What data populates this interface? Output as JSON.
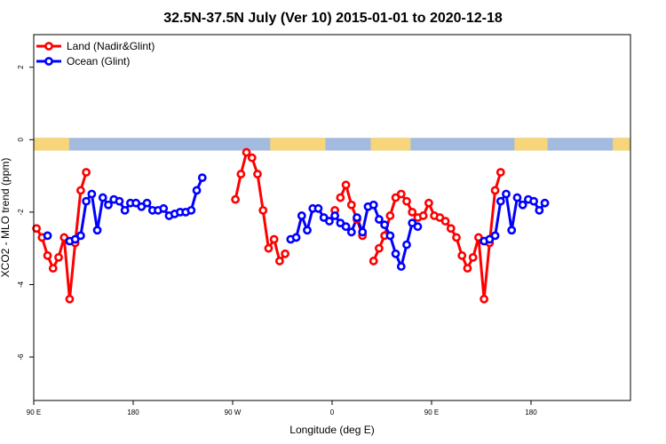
{
  "chart_data": {
    "type": "line",
    "title": "32.5N-37.5N July (Ver 10)   2015-01-01 to 2020-12-18",
    "xlabel": "Longitude (deg E)",
    "ylabel": "XCO2 - MLO trend (ppm)",
    "xlim": [
      90,
      630
    ],
    "ylim": [
      -7.2,
      2.9
    ],
    "x_ticks": [
      {
        "value": 90,
        "label": "90 E"
      },
      {
        "value": 180,
        "label": "180"
      },
      {
        "value": 270,
        "label": "90 W"
      },
      {
        "value": 360,
        "label": "0"
      },
      {
        "value": 450,
        "label": "90 E"
      },
      {
        "value": 540,
        "label": "180"
      }
    ],
    "y_ticks": [
      {
        "value": 2,
        "label": "2"
      },
      {
        "value": 0,
        "label": "0"
      },
      {
        "value": -2,
        "label": "-2"
      },
      {
        "value": -4,
        "label": "-4"
      },
      {
        "value": -6,
        "label": "-6"
      }
    ],
    "legend": {
      "position": "top-left"
    },
    "land_ocean_strip": {
      "y_range": [
        -0.3,
        0.05
      ],
      "ocean_color": "#a3bbdf",
      "land_color": "#f7d57a",
      "land_segments": [
        [
          90,
          122
        ],
        [
          304,
          354
        ],
        [
          395,
          431
        ],
        [
          525,
          555
        ],
        [
          614,
          630
        ]
      ]
    },
    "series": [
      {
        "name": "Land (Nadir&Glint)",
        "color": "#ff0000",
        "segments": [
          [
            [
              92.5,
              -2.45
            ],
            [
              97.5,
              -2.7
            ],
            [
              102.5,
              -3.2
            ],
            [
              107.5,
              -3.55
            ],
            [
              112.5,
              -3.25
            ],
            [
              117.5,
              -2.7
            ],
            [
              122.5,
              -4.4
            ],
            [
              127.5,
              -2.85
            ],
            [
              132.5,
              -1.4
            ],
            [
              137.5,
              -0.9
            ]
          ],
          [
            [
              272.5,
              -1.65
            ],
            [
              277.5,
              -0.95
            ],
            [
              282.5,
              -0.35
            ],
            [
              287.5,
              -0.5
            ],
            [
              292.5,
              -0.95
            ],
            [
              297.5,
              -1.95
            ],
            [
              302.5,
              -3.0
            ],
            [
              307.5,
              -2.75
            ],
            [
              312.5,
              -3.35
            ],
            [
              317.5,
              -3.15
            ]
          ],
          [
            [
              362.5,
              -1.95
            ]
          ],
          [
            [
              367.5,
              -1.6
            ],
            [
              372.5,
              -1.25
            ],
            [
              377.5,
              -1.8
            ],
            [
              382.5,
              -2.2
            ],
            [
              387.5,
              -2.65
            ]
          ],
          [
            [
              397.5,
              -3.35
            ],
            [
              402.5,
              -3.0
            ],
            [
              407.5,
              -2.65
            ],
            [
              412.5,
              -2.1
            ],
            [
              417.5,
              -1.6
            ],
            [
              422.5,
              -1.5
            ],
            [
              427.5,
              -1.7
            ],
            [
              432.5,
              -2.0
            ],
            [
              437.5,
              -2.15
            ],
            [
              442.5,
              -2.1
            ],
            [
              447.5,
              -1.75
            ],
            [
              452.5,
              -2.1
            ],
            [
              457.5,
              -2.15
            ],
            [
              462.5,
              -2.25
            ],
            [
              467.5,
              -2.45
            ],
            [
              472.5,
              -2.7
            ],
            [
              477.5,
              -3.2
            ],
            [
              482.5,
              -3.55
            ],
            [
              487.5,
              -3.25
            ],
            [
              492.5,
              -2.7
            ],
            [
              497.5,
              -4.4
            ],
            [
              502.5,
              -2.85
            ],
            [
              507.5,
              -1.4
            ],
            [
              512.5,
              -0.9
            ]
          ]
        ]
      },
      {
        "name": "Ocean (Glint)",
        "color": "#0000ff",
        "segments": [
          [
            [
              102.5,
              -2.65
            ]
          ],
          [
            [
              122.5,
              -2.8
            ],
            [
              127.5,
              -2.75
            ],
            [
              132.5,
              -2.65
            ],
            [
              137.5,
              -1.7
            ],
            [
              142.5,
              -1.5
            ],
            [
              147.5,
              -2.5
            ],
            [
              152.5,
              -1.6
            ],
            [
              157.5,
              -1.8
            ],
            [
              162.5,
              -1.65
            ],
            [
              167.5,
              -1.7
            ],
            [
              172.5,
              -1.95
            ],
            [
              177.5,
              -1.75
            ],
            [
              182.5,
              -1.75
            ],
            [
              187.5,
              -1.85
            ],
            [
              192.5,
              -1.75
            ],
            [
              197.5,
              -1.95
            ],
            [
              202.5,
              -1.95
            ],
            [
              207.5,
              -1.9
            ],
            [
              212.5,
              -2.1
            ],
            [
              217.5,
              -2.05
            ],
            [
              222.5,
              -2.0
            ],
            [
              227.5,
              -2.0
            ],
            [
              232.5,
              -1.95
            ],
            [
              237.5,
              -1.4
            ],
            [
              242.5,
              -1.05
            ]
          ],
          [
            [
              322.5,
              -2.75
            ],
            [
              327.5,
              -2.7
            ],
            [
              332.5,
              -2.1
            ],
            [
              337.5,
              -2.5
            ],
            [
              342.5,
              -1.9
            ],
            [
              347.5,
              -1.9
            ],
            [
              352.5,
              -2.15
            ],
            [
              357.5,
              -2.25
            ],
            [
              362.5,
              -2.1
            ],
            [
              367.5,
              -2.3
            ],
            [
              372.5,
              -2.4
            ],
            [
              377.5,
              -2.55
            ],
            [
              382.5,
              -2.15
            ],
            [
              387.5,
              -2.55
            ],
            [
              392.5,
              -1.85
            ],
            [
              397.5,
              -1.8
            ],
            [
              402.5,
              -2.2
            ],
            [
              407.5,
              -2.35
            ],
            [
              412.5,
              -2.65
            ],
            [
              417.5,
              -3.15
            ],
            [
              422.5,
              -3.5
            ],
            [
              427.5,
              -2.9
            ],
            [
              432.5,
              -2.3
            ],
            [
              437.5,
              -2.4
            ]
          ],
          [
            [
              497.5,
              -2.8
            ],
            [
              502.5,
              -2.75
            ],
            [
              507.5,
              -2.65
            ],
            [
              512.5,
              -1.7
            ],
            [
              517.5,
              -1.5
            ],
            [
              522.5,
              -2.5
            ],
            [
              527.5,
              -1.6
            ],
            [
              532.5,
              -1.8
            ],
            [
              537.5,
              -1.65
            ],
            [
              542.5,
              -1.7
            ],
            [
              547.5,
              -1.95
            ],
            [
              552.5,
              -1.75
            ]
          ]
        ]
      }
    ]
  }
}
